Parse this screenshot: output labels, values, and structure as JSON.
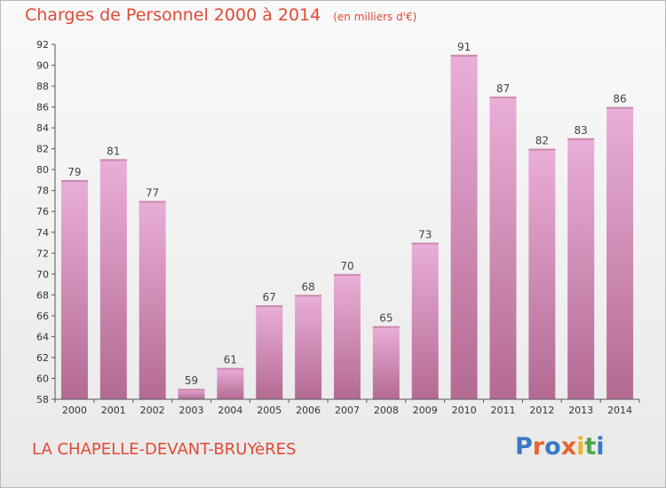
{
  "header": {
    "title": "Charges de Personnel 2000 à 2014",
    "subtitle": "(en milliers d'€)"
  },
  "footer": {
    "commune": "LA CHAPELLE-DEVANT-BRUYèRES",
    "logo": "Proxiti",
    "logo_colors": [
      "#3a78c4",
      "#e8642a",
      "#3a78c4",
      "#e8642a",
      "#f0b429",
      "#4aa84a",
      "#3a78c4"
    ]
  },
  "colors": {
    "bar_top": "#eaaed8",
    "bar_bottom": "#b36a93",
    "title": "#e04a34",
    "axis": "#555555"
  },
  "chart_data": {
    "type": "bar",
    "title": "Charges de Personnel 2000 à 2014",
    "subtitle": "(en milliers d'€)",
    "categories": [
      "2000",
      "2001",
      "2002",
      "2003",
      "2004",
      "2005",
      "2006",
      "2007",
      "2008",
      "2009",
      "2010",
      "2011",
      "2012",
      "2013",
      "2014"
    ],
    "values": [
      79,
      81,
      77,
      59,
      61,
      67,
      68,
      70,
      65,
      73,
      91,
      87,
      82,
      83,
      86
    ],
    "ylim": [
      58,
      92
    ],
    "yticks": [
      58,
      60,
      62,
      64,
      66,
      68,
      70,
      72,
      74,
      76,
      78,
      80,
      82,
      84,
      86,
      88,
      90,
      92
    ],
    "xlabel": "",
    "ylabel": "",
    "grid": false,
    "data_labels": true
  }
}
